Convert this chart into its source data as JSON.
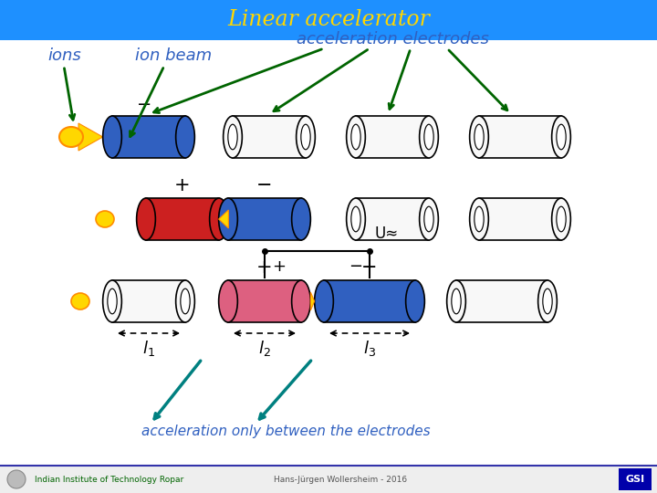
{
  "title": "Linear accelerator",
  "title_color": "#FFD700",
  "title_bg": "#1E90FF",
  "bg_color": "#FFFFFF",
  "label_ions": "ions",
  "label_ion_beam": "ion beam",
  "label_accel_electrodes": "acceleration electrodes",
  "label_accel_only": "acceleration only between the electrodes",
  "label_footer_left": "Indian Institute of Technology Ropar",
  "label_footer_center": "Hans-Jürgen Wollersheim - 2016",
  "col_blue": "#3060C0",
  "col_blue_dark": "#2040A0",
  "col_red": "#CC2020",
  "col_pink": "#DD6080",
  "col_white_fill": "#F8F8F8",
  "col_green": "#006400",
  "col_teal": "#008080",
  "col_text_blue": "#0000AA",
  "col_yellow": "#FFD700",
  "col_orange": "#FFA500"
}
